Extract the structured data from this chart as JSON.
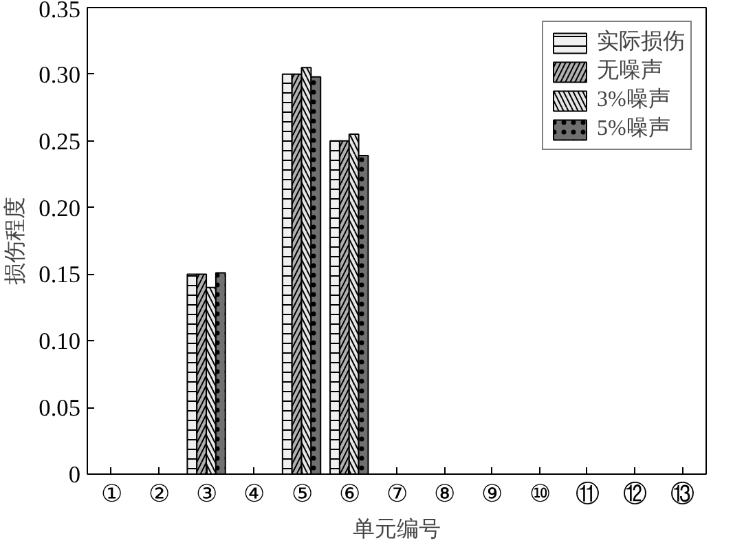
{
  "chart_data": {
    "type": "bar",
    "xlabel": "单元编号",
    "ylabel": "损伤程度",
    "categories": [
      "①",
      "②",
      "③",
      "④",
      "⑤",
      "⑥",
      "⑦",
      "⑧",
      "⑨",
      "⑩",
      "⑪",
      "⑫",
      "⑬"
    ],
    "series": [
      {
        "name": "实际损伤",
        "color": "#f0f0f0",
        "values": [
          0,
          0,
          0.15,
          0,
          0.3,
          0.25,
          0,
          0,
          0,
          0,
          0,
          0,
          0
        ]
      },
      {
        "name": "无噪声",
        "color": "#b0b0b0",
        "values": [
          0,
          0,
          0.15,
          0,
          0.3,
          0.25,
          0,
          0,
          0,
          0,
          0,
          0,
          0
        ]
      },
      {
        "name": "3%噪声",
        "color": "#e6e6e6",
        "values": [
          0,
          0,
          0.14,
          0,
          0.305,
          0.255,
          0,
          0,
          0,
          0,
          0,
          0,
          0
        ]
      },
      {
        "name": "5%噪声",
        "color": "#707070",
        "values": [
          0,
          0,
          0.151,
          0,
          0.298,
          0.239,
          0,
          0,
          0,
          0,
          0,
          0,
          0
        ]
      }
    ],
    "ylim": [
      0,
      0.35
    ],
    "yticks": [
      0,
      0.05,
      {
        "value": 0.1,
        "label": "0.10"
      },
      0.15,
      {
        "value": 0.2,
        "label": "0.20"
      },
      0.25,
      {
        "value": 0.3,
        "label": "0.30"
      },
      0.35
    ],
    "legend": "top right",
    "grid": false
  }
}
